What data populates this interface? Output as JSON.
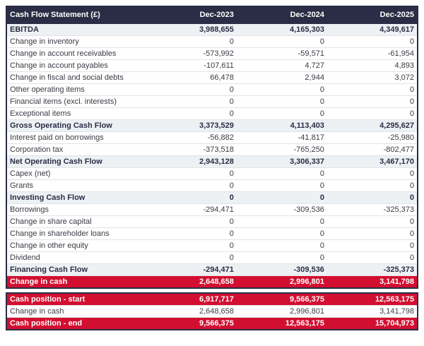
{
  "table": {
    "title": "Cash Flow Statement (£)",
    "columns": [
      "Dec-2023",
      "Dec-2024",
      "Dec-2025"
    ],
    "rows": [
      {
        "label": "EBITDA",
        "values": [
          "3,988,655",
          "4,165,303",
          "4,349,617"
        ],
        "style": "section"
      },
      {
        "label": "Change in inventory",
        "values": [
          "0",
          "0",
          "0"
        ],
        "style": "normal"
      },
      {
        "label": "Change in account receivables",
        "values": [
          "-573,992",
          "-59,571",
          "-61,954"
        ],
        "style": "normal"
      },
      {
        "label": "Change in account payables",
        "values": [
          "-107,611",
          "4,727",
          "4,893"
        ],
        "style": "normal"
      },
      {
        "label": "Change in fiscal and social debts",
        "values": [
          "66,478",
          "2,944",
          "3,072"
        ],
        "style": "normal"
      },
      {
        "label": "Other operating items",
        "values": [
          "0",
          "0",
          "0"
        ],
        "style": "normal"
      },
      {
        "label": "Financial items (excl. interests)",
        "values": [
          "0",
          "0",
          "0"
        ],
        "style": "normal"
      },
      {
        "label": "Exceptional items",
        "values": [
          "0",
          "0",
          "0"
        ],
        "style": "normal"
      },
      {
        "label": "Gross Operating Cash Flow",
        "values": [
          "3,373,529",
          "4,113,403",
          "4,295,627"
        ],
        "style": "section"
      },
      {
        "label": "Interest paid on borrowings",
        "values": [
          "-56,882",
          "-41,817",
          "-25,980"
        ],
        "style": "normal"
      },
      {
        "label": "Corporation tax",
        "values": [
          "-373,518",
          "-765,250",
          "-802,477"
        ],
        "style": "normal"
      },
      {
        "label": "Net Operating Cash Flow",
        "values": [
          "2,943,128",
          "3,306,337",
          "3,467,170"
        ],
        "style": "section"
      },
      {
        "label": "Capex (net)",
        "values": [
          "0",
          "0",
          "0"
        ],
        "style": "normal"
      },
      {
        "label": "Grants",
        "values": [
          "0",
          "0",
          "0"
        ],
        "style": "normal"
      },
      {
        "label": "Investing Cash Flow",
        "values": [
          "0",
          "0",
          "0"
        ],
        "style": "section"
      },
      {
        "label": "Borrowings",
        "values": [
          "-294,471",
          "-309,536",
          "-325,373"
        ],
        "style": "normal"
      },
      {
        "label": "Change in share capital",
        "values": [
          "0",
          "0",
          "0"
        ],
        "style": "normal"
      },
      {
        "label": "Change in shareholder loans",
        "values": [
          "0",
          "0",
          "0"
        ],
        "style": "normal"
      },
      {
        "label": "Change in other equity",
        "values": [
          "0",
          "0",
          "0"
        ],
        "style": "normal"
      },
      {
        "label": "Dividend",
        "values": [
          "0",
          "0",
          "0"
        ],
        "style": "normal"
      },
      {
        "label": "Financing Cash Flow",
        "values": [
          "-294,471",
          "-309,536",
          "-325,373"
        ],
        "style": "section"
      },
      {
        "label": "Change in cash",
        "values": [
          "2,648,658",
          "2,996,801",
          "3,141,798"
        ],
        "style": "highlight"
      }
    ],
    "summary_rows": [
      {
        "label": "Cash position - start",
        "values": [
          "6,917,717",
          "9,566,375",
          "12,563,175"
        ],
        "style": "highlight"
      },
      {
        "label": "Change in cash",
        "values": [
          "2,648,658",
          "2,996,801",
          "3,141,798"
        ],
        "style": "normal"
      },
      {
        "label": "Cash position - end",
        "values": [
          "9,566,375",
          "12,563,175",
          "15,704,973"
        ],
        "style": "highlight"
      }
    ]
  },
  "colors": {
    "header_bg": "#2a2d45",
    "header_text": "#ffffff",
    "section_row_bg": "#eef1f4",
    "section_text": "#2a2d45",
    "highlight_bg": "#d20f31",
    "highlight_text": "#ffffff",
    "body_text": "#3a3a44",
    "row_divider": "#e2e2e2"
  }
}
